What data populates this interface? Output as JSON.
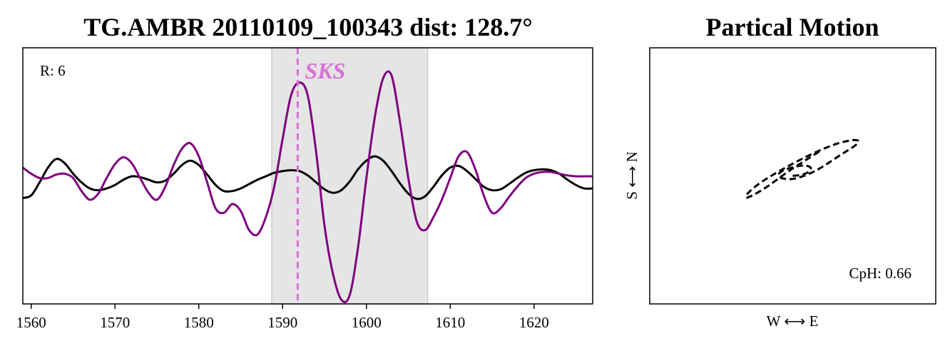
{
  "colors": {
    "radial": "#000000",
    "transverse": "#800080",
    "window_fill": "#e5e5e5",
    "phase_marker": "#da70d6",
    "particle_motion": "#000000"
  },
  "chart_data": [
    {
      "type": "line",
      "title": "TG.AMBR 20110109_100343 dist: 128.7°",
      "xlim": [
        1559,
        1627
      ],
      "ylim": [
        -1.45,
        1.5
      ],
      "xticks": [
        1560,
        1570,
        1580,
        1590,
        1600,
        1610,
        1620
      ],
      "xtick_labels": [
        "1560",
        "1570",
        "1580",
        "1590",
        "1600",
        "1610",
        "1620"
      ],
      "yticks_visible": false,
      "grid": false,
      "annotation": "R: 6",
      "phase": {
        "label": "SKS",
        "time": 1591.8
      },
      "window": [
        1588.7,
        1607.3
      ],
      "series": [
        {
          "color": "black",
          "x": [
            1559.0,
            1560.0,
            1561.0,
            1562.0,
            1563.0,
            1564.0,
            1565.0,
            1566.0,
            1567.0,
            1568.0,
            1569.0,
            1570.0,
            1571.0,
            1572.0,
            1573.0,
            1574.0,
            1575.0,
            1576.0,
            1577.0,
            1578.0,
            1579.0,
            1580.0,
            1581.0,
            1582.0,
            1583.0,
            1584.0,
            1585.0,
            1586.0,
            1587.0,
            1588.0,
            1589.0,
            1590.0,
            1591.0,
            1592.0,
            1593.0,
            1594.0,
            1595.0,
            1596.0,
            1597.0,
            1598.0,
            1599.0,
            1600.0,
            1601.0,
            1602.0,
            1603.0,
            1604.0,
            1605.0,
            1606.0,
            1607.0,
            1608.0,
            1609.0,
            1610.0,
            1611.0,
            1612.0,
            1613.0,
            1614.0,
            1615.0,
            1616.0,
            1617.0,
            1618.0,
            1619.0,
            1620.0,
            1621.0,
            1622.0,
            1623.0,
            1624.0,
            1625.0,
            1626.0,
            1627.0
          ],
          "y": [
            -0.23,
            -0.2,
            -0.05,
            0.12,
            0.22,
            0.17,
            0.05,
            -0.05,
            -0.12,
            -0.14,
            -0.12,
            -0.08,
            -0.02,
            0.02,
            0.01,
            -0.02,
            -0.05,
            -0.03,
            0.05,
            0.15,
            0.2,
            0.15,
            0.04,
            -0.08,
            -0.15,
            -0.15,
            -0.12,
            -0.07,
            -0.02,
            0.02,
            0.06,
            0.08,
            0.09,
            0.08,
            0.03,
            -0.05,
            -0.13,
            -0.17,
            -0.14,
            -0.04,
            0.1,
            0.2,
            0.25,
            0.2,
            0.08,
            -0.06,
            -0.18,
            -0.24,
            -0.21,
            -0.1,
            0.03,
            0.12,
            0.14,
            0.08,
            -0.01,
            -0.1,
            -0.14,
            -0.13,
            -0.07,
            0.0,
            0.06,
            0.09,
            0.1,
            0.09,
            0.05,
            -0.02,
            -0.08,
            -0.12,
            -0.12
          ]
        },
        {
          "color": "purple",
          "x": [
            1559.0,
            1560.0,
            1561.0,
            1562.0,
            1563.0,
            1564.0,
            1565.0,
            1566.0,
            1567.0,
            1568.0,
            1569.0,
            1570.0,
            1571.0,
            1572.0,
            1573.0,
            1574.0,
            1575.0,
            1576.0,
            1577.0,
            1578.0,
            1579.0,
            1580.0,
            1581.0,
            1582.0,
            1583.0,
            1584.0,
            1585.0,
            1586.0,
            1587.0,
            1588.0,
            1589.0,
            1590.0,
            1591.0,
            1592.0,
            1593.0,
            1594.0,
            1595.0,
            1596.0,
            1597.0,
            1598.0,
            1599.0,
            1600.0,
            1601.0,
            1602.0,
            1603.0,
            1604.0,
            1605.0,
            1606.0,
            1607.0,
            1608.0,
            1609.0,
            1610.0,
            1611.0,
            1612.0,
            1613.0,
            1614.0,
            1615.0,
            1616.0,
            1617.0,
            1618.0,
            1619.0,
            1620.0,
            1621.0,
            1622.0,
            1623.0,
            1624.0,
            1625.0,
            1626.0,
            1627.0
          ],
          "y": [
            0.12,
            0.05,
            0.0,
            0.0,
            0.04,
            0.05,
            0.0,
            -0.15,
            -0.25,
            -0.18,
            0.0,
            0.16,
            0.24,
            0.17,
            0.0,
            -0.17,
            -0.25,
            -0.1,
            0.15,
            0.34,
            0.4,
            0.25,
            -0.05,
            -0.35,
            -0.4,
            -0.3,
            -0.38,
            -0.6,
            -0.65,
            -0.45,
            -0.1,
            0.45,
            0.95,
            1.1,
            0.95,
            0.3,
            -0.55,
            -1.1,
            -1.4,
            -1.35,
            -0.8,
            0.0,
            0.7,
            1.15,
            1.18,
            0.65,
            0.0,
            -0.5,
            -0.6,
            -0.45,
            -0.25,
            0.0,
            0.25,
            0.3,
            0.1,
            -0.2,
            -0.4,
            -0.35,
            -0.22,
            -0.1,
            0.0,
            0.05,
            0.07,
            0.07,
            0.05,
            0.03,
            0.02,
            0.02,
            0.02
          ]
        }
      ]
    },
    {
      "type": "line",
      "title": "Partical Motion",
      "xlabel": "W ⟷ E",
      "ylabel": "S ⟷ N",
      "xlim": [
        -1.0,
        1.0
      ],
      "ylim": [
        -1.0,
        1.0
      ],
      "ticks_visible": false,
      "grid": false,
      "annotation": "CpH: 0.66",
      "series": [
        {
          "color": "black",
          "line_style": "dashed",
          "x": [
            0.0,
            0.07,
            0.12,
            0.12,
            0.06,
            -0.05,
            -0.1,
            -0.07,
            0.02,
            0.16,
            0.33,
            0.45,
            0.43,
            0.28,
            0.06,
            -0.18,
            -0.3,
            -0.32,
            -0.2,
            -0.01,
            0.2
          ],
          "y": [
            0.0,
            0.01,
            0.04,
            0.07,
            0.08,
            0.05,
            0.01,
            -0.02,
            -0.02,
            0.04,
            0.16,
            0.25,
            0.28,
            0.24,
            0.13,
            -0.02,
            -0.12,
            -0.17,
            -0.1,
            0.05,
            0.2
          ]
        }
      ]
    }
  ]
}
